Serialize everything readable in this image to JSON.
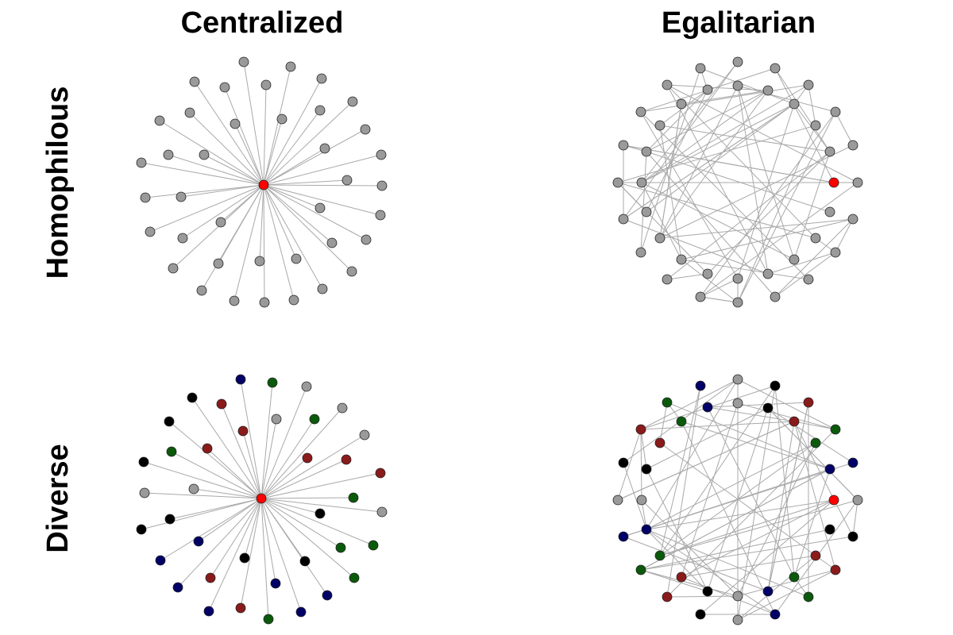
{
  "columns": [
    "Centralized",
    "Egalitarian"
  ],
  "rows": [
    "Homophilous",
    "Diverse"
  ],
  "colors": {
    "hub": "#ff0000",
    "gray": "#9a9a9a",
    "black": "#000000",
    "navy": "#000066",
    "green": "#0b5a0b",
    "darkred": "#8b1a1a",
    "edge": "#a9a9a9"
  }
}
